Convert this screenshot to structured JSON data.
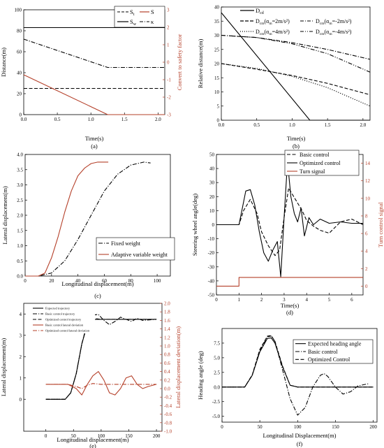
{
  "chart_data": [
    {
      "type": "line",
      "panel_label": "(a)",
      "xlabel": "Time(s)",
      "ylabel": "Distance(m)",
      "y2label": "Convert to safety factor",
      "xlim": [
        0,
        2.1
      ],
      "ylim": [
        0,
        100
      ],
      "y2lim": [
        -3,
        3
      ],
      "xticks": [
        "0.0",
        "0.5",
        "1.0",
        "1.5",
        "2.0"
      ],
      "xtick_vals": [
        0,
        0.5,
        1.0,
        1.5,
        2.0
      ],
      "yticks": [
        "0",
        "20",
        "40",
        "60",
        "80",
        "100"
      ],
      "ytick_vals": [
        0,
        20,
        40,
        60,
        80,
        100
      ],
      "y2ticks": [
        "-3",
        "-2",
        "-1",
        "0",
        "1",
        "2",
        "3"
      ],
      "y2tick_vals": [
        -3,
        -2,
        -1,
        0,
        1,
        2,
        3
      ],
      "legend": "top-right",
      "series": [
        {
          "name": "S_t",
          "style": "dash",
          "color": "#000000",
          "axis": "left",
          "x": [
            0,
            2.1
          ],
          "y": [
            25,
            25
          ]
        },
        {
          "name": "S_w",
          "style": "solid",
          "color": "#000000",
          "axis": "left",
          "x": [
            0,
            2.1
          ],
          "y": [
            83,
            83
          ]
        },
        {
          "name": "S",
          "style": "solid",
          "color": "#b5402a",
          "axis": "left",
          "x": [
            0,
            1.25,
            2.1
          ],
          "y": [
            38,
            0,
            0
          ]
        },
        {
          "name": "κ",
          "style": "dashdot",
          "color": "#000000",
          "axis": "left",
          "x": [
            0,
            1.25,
            2.1
          ],
          "y": [
            72,
            45,
            45
          ]
        }
      ]
    },
    {
      "type": "line",
      "panel_label": "(b)",
      "xlabel": "Time(s)",
      "ylabel": "Relative distance(m)",
      "xlim": [
        0,
        2.1
      ],
      "ylim": [
        0,
        40
      ],
      "xticks": [
        "0.0",
        "0.5",
        "1.0",
        "1.5",
        "2.0"
      ],
      "xtick_vals": [
        0,
        0.5,
        1.0,
        1.5,
        2.0
      ],
      "yticks": [
        "0",
        "5",
        "10",
        "15",
        "20",
        "25",
        "30",
        "35",
        "40"
      ],
      "ytick_vals": [
        0,
        5,
        10,
        15,
        20,
        25,
        30,
        35,
        40
      ],
      "legend": "top-right",
      "series": [
        {
          "name": "D_cd",
          "style": "solid",
          "color": "#000000",
          "x": [
            0,
            1.25,
            2.1
          ],
          "y": [
            38,
            0,
            0
          ]
        },
        {
          "name": "D_cm(α_m=2m/s²)",
          "style": "dash",
          "color": "#000000",
          "x": [
            0,
            0.5,
            1.0,
            1.5,
            2.1
          ],
          "y": [
            20,
            18,
            15.8,
            13,
            9
          ]
        },
        {
          "name": "D_cm(α_m=-2m/s²)",
          "style": "dashdot",
          "color": "#000000",
          "x": [
            0,
            0.5,
            1.0,
            1.5,
            2.1
          ],
          "y": [
            30,
            29.2,
            27.4,
            25,
            21.5
          ]
        },
        {
          "name": "D_cm(α_m=4m/s²)",
          "style": "dot",
          "color": "#000000",
          "x": [
            0,
            0.5,
            1.0,
            1.5,
            2.1
          ],
          "y": [
            20,
            18.3,
            15.5,
            11.5,
            5
          ]
        },
        {
          "name": "D_cm(α_m=-4m/s²)",
          "style": "dashdotdot",
          "color": "#000000",
          "x": [
            0,
            0.5,
            1.0,
            1.5,
            2.1
          ],
          "y": [
            30,
            29.2,
            27,
            23.5,
            17
          ]
        }
      ]
    },
    {
      "type": "line",
      "panel_label": "(c)",
      "xlabel": "Longitudinal displacement(m)",
      "ylabel": "Lateral displacement(m)",
      "xlim": [
        0,
        110
      ],
      "ylim": [
        0,
        4.0
      ],
      "xticks": [
        "0",
        "20",
        "40",
        "60",
        "80",
        "100"
      ],
      "xtick_vals": [
        0,
        20,
        40,
        60,
        80,
        100
      ],
      "yticks": [
        "0.0",
        "0.5",
        "1.0",
        "1.5",
        "2.0",
        "2.5",
        "3.0",
        "3.5",
        "4.0"
      ],
      "ytick_vals": [
        0,
        0.5,
        1.0,
        1.5,
        2.0,
        2.5,
        3.0,
        3.5,
        4.0
      ],
      "legend": "bottom-right",
      "series": [
        {
          "name": "Fixed weight",
          "style": "dashdot",
          "color": "#000000",
          "x": [
            0,
            10,
            20,
            30,
            40,
            50,
            60,
            70,
            80,
            90,
            95
          ],
          "y": [
            0,
            0,
            0.1,
            0.5,
            1.2,
            2.0,
            2.8,
            3.35,
            3.65,
            3.75,
            3.72
          ]
        },
        {
          "name": "Adaptive variable weight",
          "style": "solid",
          "color": "#b5402a",
          "x": [
            0,
            10,
            15,
            20,
            25,
            30,
            35,
            40,
            45,
            50,
            55,
            60,
            63
          ],
          "y": [
            0,
            0,
            0.1,
            0.6,
            1.3,
            2.1,
            2.8,
            3.3,
            3.55,
            3.7,
            3.75,
            3.75,
            3.75
          ]
        }
      ]
    },
    {
      "type": "line",
      "panel_label": "(d)",
      "xlabel": "Time(s)",
      "ylabel": "Steering wheel angle(deg)",
      "y2label": "Turn control signal",
      "xlim": [
        0,
        6.5
      ],
      "ylim": [
        -50,
        50
      ],
      "y2lim": [
        -1,
        15
      ],
      "xticks": [
        "0",
        "1",
        "2",
        "3",
        "4",
        "5",
        "6"
      ],
      "xtick_vals": [
        0,
        1,
        2,
        3,
        4,
        5,
        6
      ],
      "yticks": [
        "-50",
        "-40",
        "-30",
        "-20",
        "-10",
        "0",
        "10",
        "20",
        "30",
        "40",
        "50"
      ],
      "ytick_vals": [
        -50,
        -40,
        -30,
        -20,
        -10,
        0,
        10,
        20,
        30,
        40,
        50
      ],
      "y2ticks": [
        "0",
        "2",
        "4",
        "6",
        "8",
        "10",
        "12",
        "14"
      ],
      "y2tick_vals": [
        0,
        2,
        4,
        6,
        8,
        10,
        12,
        14
      ],
      "legend": "top-right",
      "series": [
        {
          "name": "Basic control",
          "style": "dash",
          "color": "#000000",
          "axis": "left",
          "x": [
            0,
            1.0,
            1.2,
            1.5,
            1.8,
            2.0,
            2.3,
            2.6,
            2.8,
            3.0,
            3.2,
            3.5,
            3.8,
            4.0,
            4.3,
            4.6,
            5.0,
            5.5,
            6.0,
            6.5
          ],
          "y": [
            0,
            0,
            10,
            18,
            8,
            -5,
            -15,
            -22,
            -18,
            5,
            26,
            18,
            10,
            3,
            -1,
            -4,
            -6,
            2,
            4,
            0
          ]
        },
        {
          "name": "Optimized control",
          "style": "solid",
          "color": "#000000",
          "axis": "left",
          "x": [
            0,
            1.0,
            1.15,
            1.3,
            1.5,
            1.7,
            1.9,
            2.1,
            2.3,
            2.5,
            2.7,
            2.85,
            3.0,
            3.15,
            3.3,
            3.45,
            3.6,
            3.75,
            3.9,
            4.1,
            4.3,
            4.6,
            5.0,
            5.5,
            6.0,
            6.5
          ],
          "y": [
            0,
            0,
            12,
            24,
            25,
            14,
            -5,
            -20,
            -26,
            -18,
            -12,
            -37,
            5,
            45,
            20,
            8,
            2,
            12,
            -8,
            5,
            0,
            4,
            1,
            2,
            1,
            1
          ]
        },
        {
          "name": "Turn signal",
          "style": "solid",
          "color": "#b5402a",
          "axis": "right",
          "x": [
            0,
            1.0,
            1.0,
            6.5
          ],
          "y": [
            0,
            0,
            1,
            1
          ]
        }
      ]
    },
    {
      "type": "line",
      "panel_label": "(e)",
      "xlabel": "Longitudinal displacement(m)",
      "ylabel": "Lateral displacement(m)",
      "y2label": "Lateral displacement deviation(m)",
      "xlim": [
        -40,
        210
      ],
      "ylim": [
        -1.5,
        4.5
      ],
      "y2lim": [
        -1.0,
        2.0
      ],
      "xticks": [
        "0",
        "50",
        "100",
        "150",
        "200"
      ],
      "xtick_vals": [
        0,
        50,
        100,
        150,
        200
      ],
      "yticks": [
        "0",
        "1",
        "2",
        "3",
        "4"
      ],
      "ytick_vals": [
        0,
        1,
        2,
        3,
        4
      ],
      "y2ticks": [
        "-1.0",
        "-0.8",
        "-0.6",
        "-0.4",
        "-0.2",
        "0.0",
        "0.2",
        "0.4",
        "0.6",
        "0.8",
        "1.0",
        "1.2",
        "1.4",
        "1.6",
        "1.8",
        "2.0"
      ],
      "y2tick_vals": [
        -1.0,
        -0.8,
        -0.6,
        -0.4,
        -0.2,
        0.0,
        0.2,
        0.4,
        0.6,
        0.8,
        1.0,
        1.2,
        1.4,
        1.6,
        1.8,
        2.0
      ],
      "legend": "top-left",
      "series": [
        {
          "name": "Expected trajectory",
          "style": "solid",
          "color": "#000000",
          "axis": "left",
          "x": [
            0,
            35,
            45,
            55,
            65,
            75,
            85,
            100,
            200
          ],
          "y": [
            0,
            0,
            0.3,
            1.2,
            2.6,
            3.5,
            3.75,
            3.75,
            3.75
          ]
        },
        {
          "name": "Basic control trajectory",
          "style": "dashdot",
          "color": "#000000",
          "axis": "left",
          "x": [
            0,
            35,
            45,
            55,
            65,
            75,
            85,
            95,
            105,
            115,
            125,
            135,
            145,
            155,
            165,
            175,
            200
          ],
          "y": [
            0,
            0,
            0.3,
            1.2,
            2.6,
            3.6,
            3.95,
            3.98,
            3.7,
            3.5,
            3.65,
            3.85,
            3.75,
            3.65,
            3.8,
            3.7,
            3.75
          ]
        },
        {
          "name": "Optimized control trajectory",
          "style": "dash",
          "color": "#000000",
          "axis": "left",
          "x": [
            0,
            35,
            45,
            55,
            65,
            75,
            85,
            100,
            200
          ],
          "y": [
            0,
            0,
            0.3,
            1.2,
            2.6,
            3.55,
            3.8,
            3.75,
            3.75
          ]
        },
        {
          "name": "Basic control lateral deviation",
          "style": "solid",
          "color": "#b5402a",
          "axis": "right",
          "x": [
            0,
            40,
            55,
            65,
            75,
            85,
            95,
            105,
            115,
            125,
            135,
            145,
            155,
            165,
            175,
            185,
            200
          ],
          "y": [
            0.1,
            0.1,
            0.0,
            -0.15,
            0.1,
            0.3,
            0.4,
            0.2,
            -0.1,
            -0.15,
            0.0,
            0.25,
            0.3,
            0.1,
            0.0,
            0.05,
            0.1
          ]
        },
        {
          "name": "Optimized control lateral deviation",
          "style": "dashdot",
          "color": "#b5402a",
          "axis": "right",
          "x": [
            0,
            40,
            55,
            65,
            75,
            85,
            100,
            200
          ],
          "y": [
            0.1,
            0.1,
            0.05,
            0.0,
            0.08,
            0.12,
            0.1,
            0.1
          ]
        }
      ]
    },
    {
      "type": "line",
      "panel_label": "(f)",
      "xlabel": "Longitudinal Displacement(m)",
      "ylabel": "Heading angle (deg)",
      "xlim": [
        0,
        205
      ],
      "ylim": [
        -6.0,
        10.0
      ],
      "xticks": [
        "0",
        "50",
        "100",
        "150",
        "200"
      ],
      "xtick_vals": [
        0,
        50,
        100,
        150,
        200
      ],
      "yticks": [
        "-5.0",
        "-2.5",
        "0.0",
        "2.5",
        "5.0",
        "7.5"
      ],
      "ytick_vals": [
        -5.0,
        -2.5,
        0.0,
        2.5,
        5.0,
        7.5
      ],
      "legend": "top-right",
      "series": [
        {
          "name": "Expected heading angle",
          "style": "solid",
          "color": "#000000",
          "x": [
            0,
            30,
            40,
            50,
            60,
            65,
            70,
            80,
            90,
            100,
            200
          ],
          "y": [
            0,
            0,
            2.0,
            6.0,
            8.3,
            8.4,
            7.5,
            3.5,
            0.3,
            0,
            0
          ]
        },
        {
          "name": "Basic control",
          "style": "dashdot",
          "color": "#000000",
          "x": [
            0,
            30,
            40,
            50,
            60,
            65,
            70,
            80,
            90,
            100,
            110,
            120,
            130,
            135,
            140,
            150,
            160,
            170,
            180,
            195
          ],
          "y": [
            0,
            0,
            2.0,
            6.2,
            8.6,
            8.7,
            7.8,
            3.0,
            -2.0,
            -4.8,
            -3.5,
            0.0,
            2.0,
            2.3,
            1.8,
            0.0,
            -1.2,
            -0.8,
            0.2,
            0.6
          ]
        },
        {
          "name": "Optimized Control",
          "style": "dash",
          "color": "#000000",
          "x": [
            0,
            30,
            40,
            50,
            60,
            65,
            70,
            80,
            90,
            100,
            200
          ],
          "y": [
            0,
            0,
            2.1,
            6.4,
            8.7,
            8.8,
            7.8,
            3.6,
            0.3,
            0,
            0
          ]
        }
      ]
    }
  ],
  "legend_labels": {
    "a": {
      "st_main": "S",
      "st_sub": "t",
      "s": "S",
      "sw_main": "S",
      "sw_sub": "w",
      "kappa": "κ"
    },
    "b": {
      "dcd_main": "D",
      "dcd_sub": "cd",
      "m2_main": "D",
      "m2_sub": "cm",
      "m2_rest": "(α",
      "m2_sub2": "m",
      "m2_end": "=2m/s²)",
      "mn2_main": "D",
      "mn2_sub": "cm",
      "mn2_rest": "(α",
      "mn2_sub2": "m",
      "mn2_end": "=-2m/s²)",
      "m4_main": "D",
      "m4_sub": "cm",
      "m4_rest": "(α",
      "m4_sub2": "m",
      "m4_end": "=4m/s²)",
      "mn4_main": "D",
      "mn4_sub": "cm",
      "mn4_rest": "(α",
      "mn4_sub2": "m",
      "mn4_end": "=-4m/s²)"
    }
  }
}
